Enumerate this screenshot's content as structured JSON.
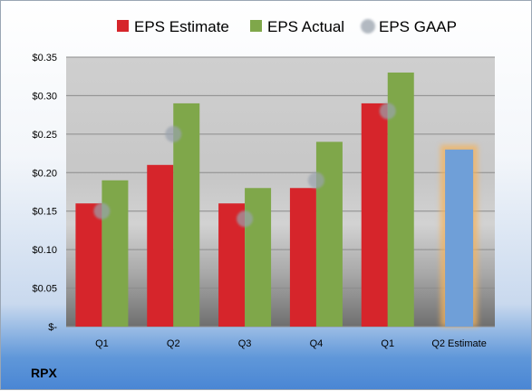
{
  "chart_data": {
    "type": "bar",
    "categories": [
      "Q1",
      "Q2",
      "Q3",
      "Q4",
      "Q1",
      "Q2 Estimate"
    ],
    "series": [
      {
        "name": "EPS Estimate",
        "color": "#d6252b",
        "values": [
          0.16,
          0.21,
          0.16,
          0.18,
          0.29,
          null
        ]
      },
      {
        "name": "EPS Actual",
        "color": "#7fa74a",
        "values": [
          0.19,
          0.29,
          0.18,
          0.24,
          0.33,
          null
        ]
      },
      {
        "name": "EPS GAAP",
        "color": "#9aa3ad",
        "marker": "circle",
        "values": [
          0.15,
          0.25,
          0.14,
          0.19,
          0.28,
          null
        ]
      },
      {
        "name": "",
        "color": "#6f9fd8",
        "highlight": "#f5b35b",
        "values": [
          null,
          null,
          null,
          null,
          null,
          0.23
        ]
      }
    ],
    "yticks": [
      0,
      0.05,
      0.1,
      0.15,
      0.2,
      0.25,
      0.3,
      0.35
    ],
    "ytick_labels": [
      "$-",
      "$0.05",
      "$0.10",
      "$0.15",
      "$0.20",
      "$0.25",
      "$0.30",
      "$0.35"
    ],
    "ylim": [
      0,
      0.35
    ],
    "grid": true,
    "legend": "top",
    "title": "",
    "xlabel": "",
    "ylabel": ""
  },
  "footer": {
    "ticker": "RPX"
  }
}
